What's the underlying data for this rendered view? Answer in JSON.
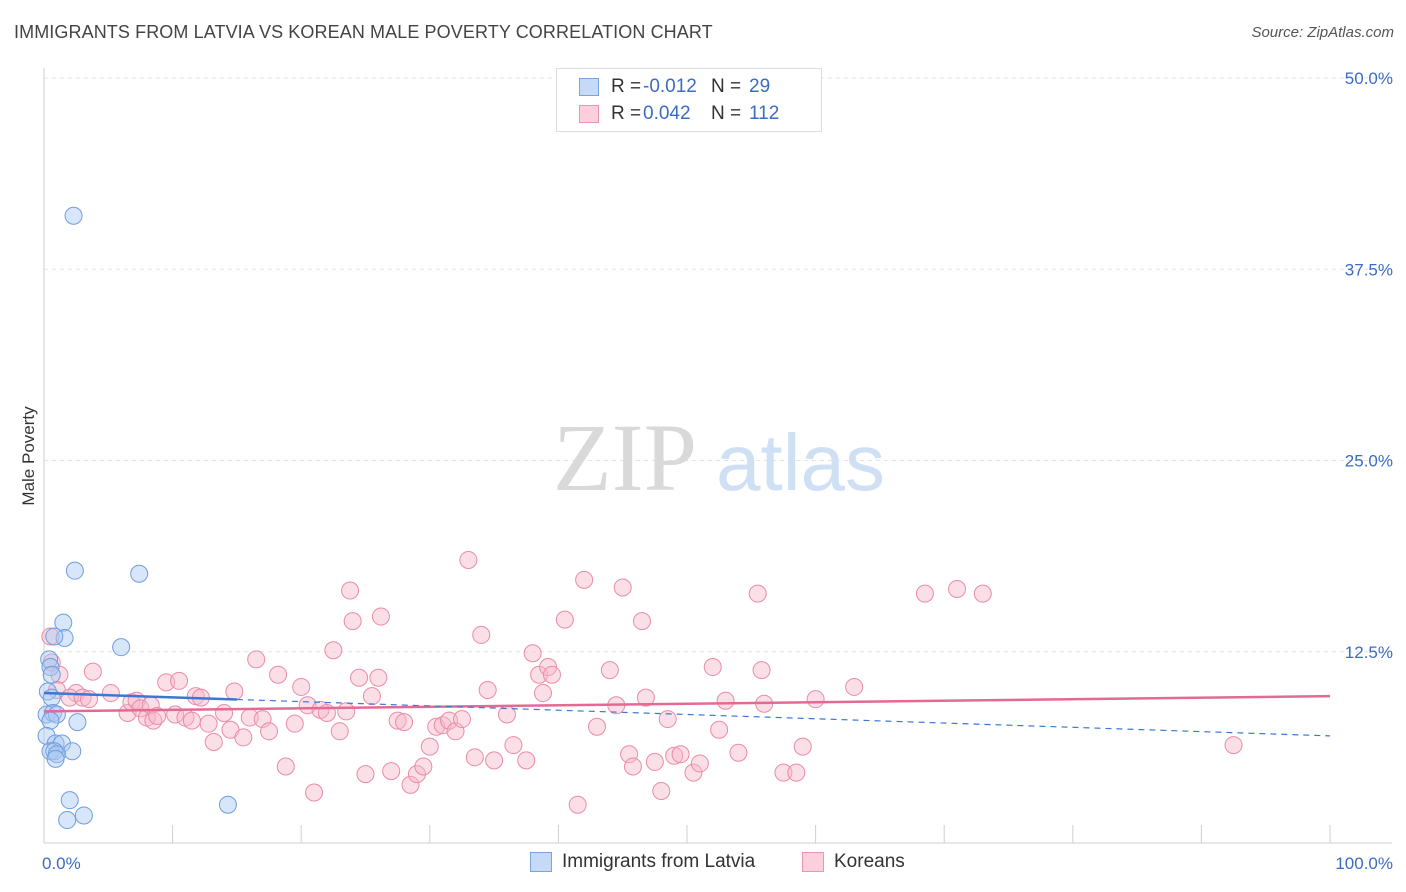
{
  "header": {
    "title": "IMMIGRANTS FROM LATVIA VS KOREAN MALE POVERTY CORRELATION CHART",
    "source": "Source: ZipAtlas.com"
  },
  "watermark": {
    "zip": "ZIP",
    "atlas": "atlas"
  },
  "legend": {
    "r_label": "R =",
    "n_label": "N =",
    "rows": [
      {
        "r": "-0.012",
        "n": "29"
      },
      {
        "r": "0.042",
        "n": "112"
      }
    ]
  },
  "chart_data": {
    "type": "scatter",
    "ylabel": "Male Poverty",
    "xlim": [
      0,
      100
    ],
    "ylim": [
      0,
      50
    ],
    "x_tick_labels": [
      "0.0%",
      "100.0%"
    ],
    "y_ticks": [
      12.5,
      25.0,
      37.5,
      50.0
    ],
    "y_tick_labels": [
      "12.5%",
      "25.0%",
      "37.5%",
      "50.0%"
    ],
    "grid": true,
    "legend_position": "top-center",
    "series": [
      {
        "name": "Immigrants from Latvia",
        "color": "#a9c8f2",
        "stroke": "#6f9ede",
        "trend_color": "#3b78d4",
        "trend": {
          "x0": 0,
          "y0": 9.8,
          "x1": 100,
          "y1": 7.0,
          "solid_until": 15
        },
        "points": [
          [
            2.3,
            41.0
          ],
          [
            2.4,
            17.8
          ],
          [
            7.4,
            17.6
          ],
          [
            1.5,
            14.4
          ],
          [
            1.6,
            13.4
          ],
          [
            0.8,
            13.5
          ],
          [
            6.0,
            12.8
          ],
          [
            0.4,
            12.0
          ],
          [
            0.5,
            11.5
          ],
          [
            0.6,
            11.0
          ],
          [
            0.3,
            9.9
          ],
          [
            0.6,
            9.5
          ],
          [
            0.2,
            8.4
          ],
          [
            0.7,
            8.5
          ],
          [
            1.0,
            8.4
          ],
          [
            0.5,
            8.0
          ],
          [
            2.6,
            7.9
          ],
          [
            0.2,
            7.0
          ],
          [
            0.9,
            6.5
          ],
          [
            1.4,
            6.5
          ],
          [
            0.5,
            6.0
          ],
          [
            0.8,
            6.0
          ],
          [
            2.2,
            6.0
          ],
          [
            1.0,
            5.8
          ],
          [
            0.9,
            5.5
          ],
          [
            2.0,
            2.8
          ],
          [
            14.3,
            2.5
          ],
          [
            3.1,
            1.8
          ],
          [
            1.8,
            1.5
          ]
        ]
      },
      {
        "name": "Koreans",
        "color": "#f7b8ca",
        "stroke": "#eb8ba8",
        "trend_color": "#e36a94",
        "trend": {
          "x0": 0,
          "y0": 8.6,
          "x1": 100,
          "y1": 9.6
        },
        "points": [
          [
            0.5,
            13.5
          ],
          [
            0.6,
            11.8
          ],
          [
            1.2,
            11.0
          ],
          [
            1.0,
            10.0
          ],
          [
            2.5,
            9.8
          ],
          [
            2.0,
            9.5
          ],
          [
            3.0,
            9.5
          ],
          [
            3.5,
            9.4
          ],
          [
            3.8,
            11.2
          ],
          [
            5.2,
            9.8
          ],
          [
            6.5,
            8.5
          ],
          [
            6.8,
            9.2
          ],
          [
            7.2,
            9.3
          ],
          [
            7.5,
            8.8
          ],
          [
            8.0,
            8.2
          ],
          [
            8.3,
            9.0
          ],
          [
            8.5,
            8.0
          ],
          [
            8.8,
            8.3
          ],
          [
            9.5,
            10.5
          ],
          [
            10.2,
            8.4
          ],
          [
            10.5,
            10.6
          ],
          [
            11.0,
            8.2
          ],
          [
            11.5,
            8.0
          ],
          [
            11.8,
            9.6
          ],
          [
            12.2,
            9.5
          ],
          [
            12.8,
            7.8
          ],
          [
            13.2,
            6.6
          ],
          [
            14.0,
            8.5
          ],
          [
            14.5,
            7.4
          ],
          [
            14.8,
            9.9
          ],
          [
            15.5,
            6.9
          ],
          [
            16.0,
            8.2
          ],
          [
            16.5,
            12.0
          ],
          [
            17.0,
            8.1
          ],
          [
            17.5,
            7.3
          ],
          [
            18.2,
            11.0
          ],
          [
            18.8,
            5.0
          ],
          [
            19.5,
            7.8
          ],
          [
            20.0,
            10.2
          ],
          [
            20.5,
            9.0
          ],
          [
            21.0,
            3.3
          ],
          [
            21.5,
            8.7
          ],
          [
            22.0,
            8.5
          ],
          [
            22.5,
            12.6
          ],
          [
            23.0,
            7.3
          ],
          [
            23.5,
            8.6
          ],
          [
            23.8,
            16.5
          ],
          [
            24.0,
            14.5
          ],
          [
            24.5,
            10.8
          ],
          [
            25.0,
            4.5
          ],
          [
            25.5,
            9.6
          ],
          [
            26.0,
            10.8
          ],
          [
            26.2,
            14.8
          ],
          [
            27.0,
            4.7
          ],
          [
            27.5,
            8.0
          ],
          [
            28.0,
            7.9
          ],
          [
            28.5,
            3.8
          ],
          [
            29.0,
            4.5
          ],
          [
            29.5,
            5.0
          ],
          [
            30.0,
            6.3
          ],
          [
            30.5,
            7.6
          ],
          [
            31.0,
            7.7
          ],
          [
            31.5,
            8.0
          ],
          [
            32.0,
            7.3
          ],
          [
            32.5,
            8.1
          ],
          [
            33.0,
            18.5
          ],
          [
            33.5,
            5.6
          ],
          [
            34.0,
            13.6
          ],
          [
            34.5,
            10.0
          ],
          [
            35.0,
            5.4
          ],
          [
            36.0,
            8.4
          ],
          [
            36.5,
            6.4
          ],
          [
            37.5,
            5.4
          ],
          [
            38.0,
            12.4
          ],
          [
            38.5,
            11.0
          ],
          [
            38.8,
            9.8
          ],
          [
            39.2,
            11.5
          ],
          [
            39.5,
            11.0
          ],
          [
            40.5,
            14.6
          ],
          [
            41.5,
            2.5
          ],
          [
            42.0,
            17.2
          ],
          [
            43.0,
            7.6
          ],
          [
            44.0,
            11.3
          ],
          [
            44.5,
            9.0
          ],
          [
            45.0,
            16.7
          ],
          [
            45.5,
            5.8
          ],
          [
            45.8,
            5.0
          ],
          [
            46.5,
            14.5
          ],
          [
            46.8,
            9.5
          ],
          [
            47.5,
            5.3
          ],
          [
            48.0,
            3.4
          ],
          [
            48.5,
            8.1
          ],
          [
            49.0,
            5.7
          ],
          [
            49.5,
            5.8
          ],
          [
            50.5,
            4.6
          ],
          [
            51.0,
            5.2
          ],
          [
            52.0,
            11.5
          ],
          [
            52.5,
            7.4
          ],
          [
            53.0,
            9.3
          ],
          [
            54.0,
            5.9
          ],
          [
            55.5,
            16.3
          ],
          [
            55.8,
            11.3
          ],
          [
            56.0,
            9.1
          ],
          [
            57.5,
            4.6
          ],
          [
            58.5,
            4.6
          ],
          [
            59.0,
            6.3
          ],
          [
            60.0,
            9.4
          ],
          [
            63.0,
            10.2
          ],
          [
            68.5,
            16.3
          ],
          [
            71.0,
            16.6
          ],
          [
            73.0,
            16.3
          ],
          [
            92.5,
            6.4
          ]
        ]
      }
    ]
  }
}
